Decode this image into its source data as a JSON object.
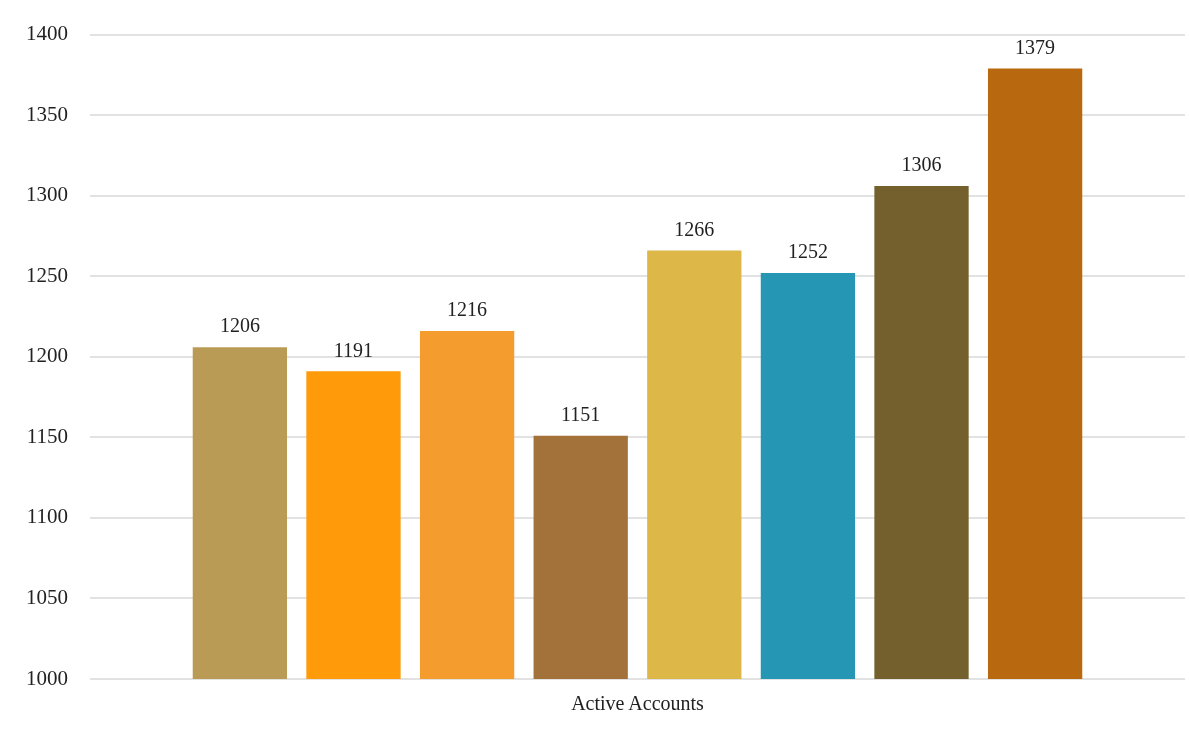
{
  "chart_data": {
    "type": "bar",
    "categories": [
      "Active Accounts"
    ],
    "series": [
      {
        "color": "#b99b56",
        "values": [
          1206
        ]
      },
      {
        "color": "#ff9a0a",
        "values": [
          1191
        ]
      },
      {
        "color": "#f59c2f",
        "values": [
          1216
        ]
      },
      {
        "color": "#a2723a",
        "values": [
          1151
        ]
      },
      {
        "color": "#ddb848",
        "values": [
          1266
        ]
      },
      {
        "color": "#2597b5",
        "values": [
          1252
        ]
      },
      {
        "color": "#73602c",
        "values": [
          1306
        ]
      },
      {
        "color": "#b8690f",
        "values": [
          1379
        ]
      }
    ],
    "ylim": [
      1000,
      1400
    ],
    "yticks": [
      1000,
      1050,
      1100,
      1150,
      1200,
      1250,
      1300,
      1350,
      1400
    ],
    "grid": "y",
    "legend": false,
    "data_labels": true
  }
}
